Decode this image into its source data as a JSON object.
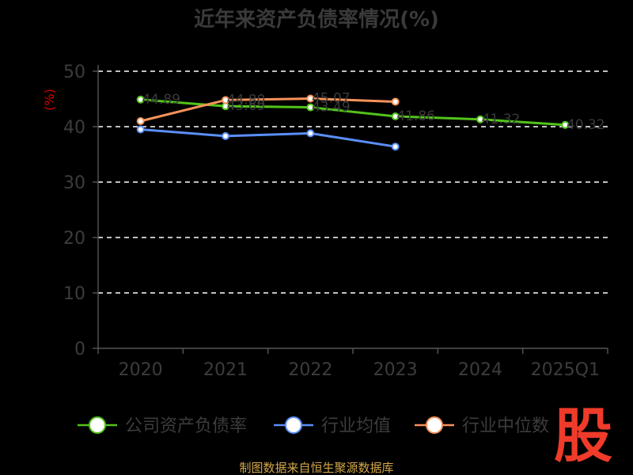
{
  "chart_data": {
    "type": "line",
    "title": "近年来资产负债率情况(%)",
    "ylabel": "(%)",
    "ylim": [
      0,
      50
    ],
    "yticks": [
      0,
      10,
      20,
      30,
      40,
      50
    ],
    "categories": [
      "2020",
      "2021",
      "2022",
      "2023",
      "2024",
      "2025Q1"
    ],
    "grid": true,
    "legend_position": "bottom",
    "series": [
      {
        "name": "公司资产负债率",
        "color": "#52c41a",
        "values": [
          44.89,
          43.69,
          43.49,
          41.86,
          41.32,
          40.32
        ],
        "labels": [
          "44.89",
          "43.69",
          "43.49",
          "41.86",
          "41.32",
          "40.32"
        ]
      },
      {
        "name": "行业均值",
        "color": "#5b8ff9",
        "values": [
          39.5,
          38.3,
          38.8,
          36.4,
          null,
          null
        ]
      },
      {
        "name": "行业中位数",
        "color": "#f6925a",
        "values": [
          41.0,
          44.8,
          45.07,
          44.5,
          null,
          null
        ],
        "labels": [
          "",
          "44.80",
          "45.07",
          "",
          "",
          ""
        ]
      }
    ]
  },
  "footer": {
    "source": "制图数据来自恒生聚源数据库"
  },
  "logo": {
    "text": "股"
  }
}
